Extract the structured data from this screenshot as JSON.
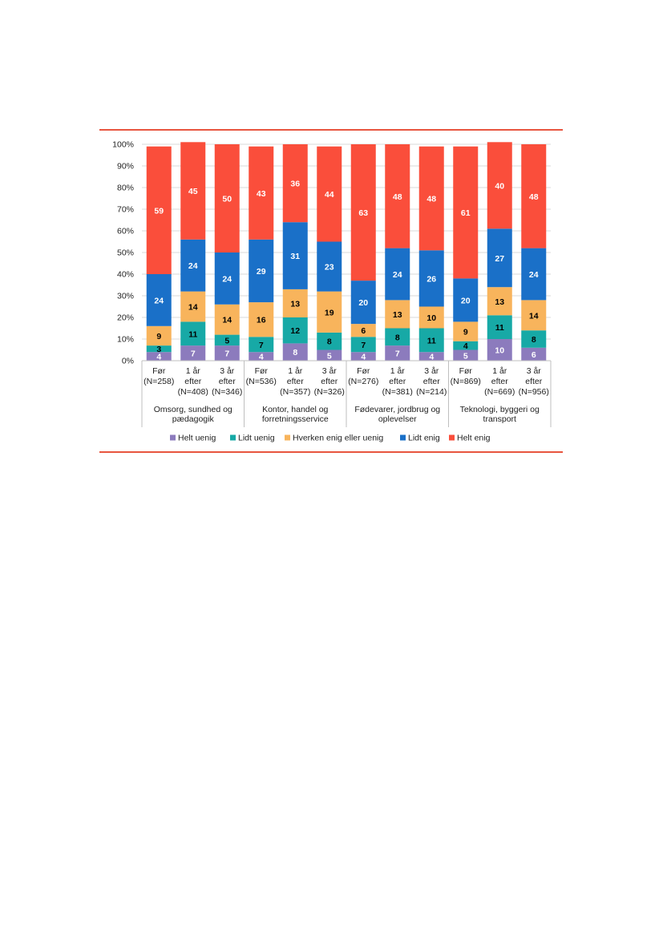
{
  "chart_data": {
    "type": "bar",
    "stacked": true,
    "percent": true,
    "ylim": [
      0,
      100
    ],
    "yticks": [
      "0%",
      "10%",
      "20%",
      "30%",
      "40%",
      "50%",
      "60%",
      "70%",
      "80%",
      "90%",
      "100%"
    ],
    "grid": true,
    "legend_position": "bottom",
    "groups": [
      {
        "label": "Omsorg, sundhed og pædagogik",
        "label_lines": [
          "Omsorg, sundhed og",
          "pædagogik"
        ],
        "bars": [
          0,
          1,
          2
        ]
      },
      {
        "label": "Kontor, handel og forretningsservice",
        "label_lines": [
          "Kontor, handel og",
          "forretningsservice"
        ],
        "bars": [
          3,
          4,
          5
        ]
      },
      {
        "label": "Fødevarer, jordbrug og oplevelser",
        "label_lines": [
          "Fødevarer, jordbrug og",
          "oplevelser"
        ],
        "bars": [
          6,
          7,
          8
        ]
      },
      {
        "label": "Teknologi, byggeri og transport",
        "label_lines": [
          "Teknologi, byggeri og",
          "transport"
        ],
        "bars": [
          9,
          10,
          11
        ]
      }
    ],
    "categories": [
      {
        "label_lines": [
          "Før",
          "(N=258)"
        ]
      },
      {
        "label_lines": [
          "1 år",
          "efter",
          "(N=408)"
        ]
      },
      {
        "label_lines": [
          "3 år",
          "efter",
          "(N=346)"
        ]
      },
      {
        "label_lines": [
          "Før",
          "(N=536)"
        ]
      },
      {
        "label_lines": [
          "1 år",
          "efter",
          "(N=357)"
        ]
      },
      {
        "label_lines": [
          "3 år",
          "efter",
          "(N=326)"
        ]
      },
      {
        "label_lines": [
          "Før",
          "(N=276)"
        ]
      },
      {
        "label_lines": [
          "1 år",
          "efter",
          "(N=381)"
        ]
      },
      {
        "label_lines": [
          "3 år",
          "efter",
          "(N=214)"
        ]
      },
      {
        "label_lines": [
          "Før",
          "(N=869)"
        ]
      },
      {
        "label_lines": [
          "1 år",
          "efter",
          "(N=669)"
        ]
      },
      {
        "label_lines": [
          "3 år",
          "efter",
          "(N=956)"
        ]
      }
    ],
    "series": [
      {
        "name": "Helt uenig",
        "color": "#8c7bbd",
        "label_color": "#ffffff",
        "values": [
          4,
          7,
          7,
          4,
          8,
          5,
          4,
          7,
          4,
          5,
          10,
          6
        ]
      },
      {
        "name": "Lidt uenig",
        "color": "#17a9a6",
        "label_color": "#000000",
        "values": [
          3,
          11,
          5,
          7,
          12,
          8,
          7,
          8,
          11,
          4,
          11,
          8
        ]
      },
      {
        "name": "Hverken enig eller uenig",
        "color": "#f8b45c",
        "label_color": "#000000",
        "values": [
          9,
          14,
          14,
          16,
          13,
          19,
          6,
          13,
          10,
          9,
          13,
          14
        ]
      },
      {
        "name": "Lidt enig",
        "color": "#1a70c8",
        "label_color": "#ffffff",
        "values": [
          24,
          24,
          24,
          29,
          31,
          23,
          20,
          24,
          26,
          20,
          27,
          24
        ]
      },
      {
        "name": "Helt enig",
        "color": "#fa4e3b",
        "label_color": "#ffffff",
        "values": [
          59,
          45,
          50,
          43,
          36,
          44,
          63,
          48,
          48,
          61,
          40,
          48
        ]
      }
    ]
  },
  "colors": {
    "rule": "#e8553f",
    "grid": "#d9d9d9",
    "axis": "#bfbfbf"
  }
}
